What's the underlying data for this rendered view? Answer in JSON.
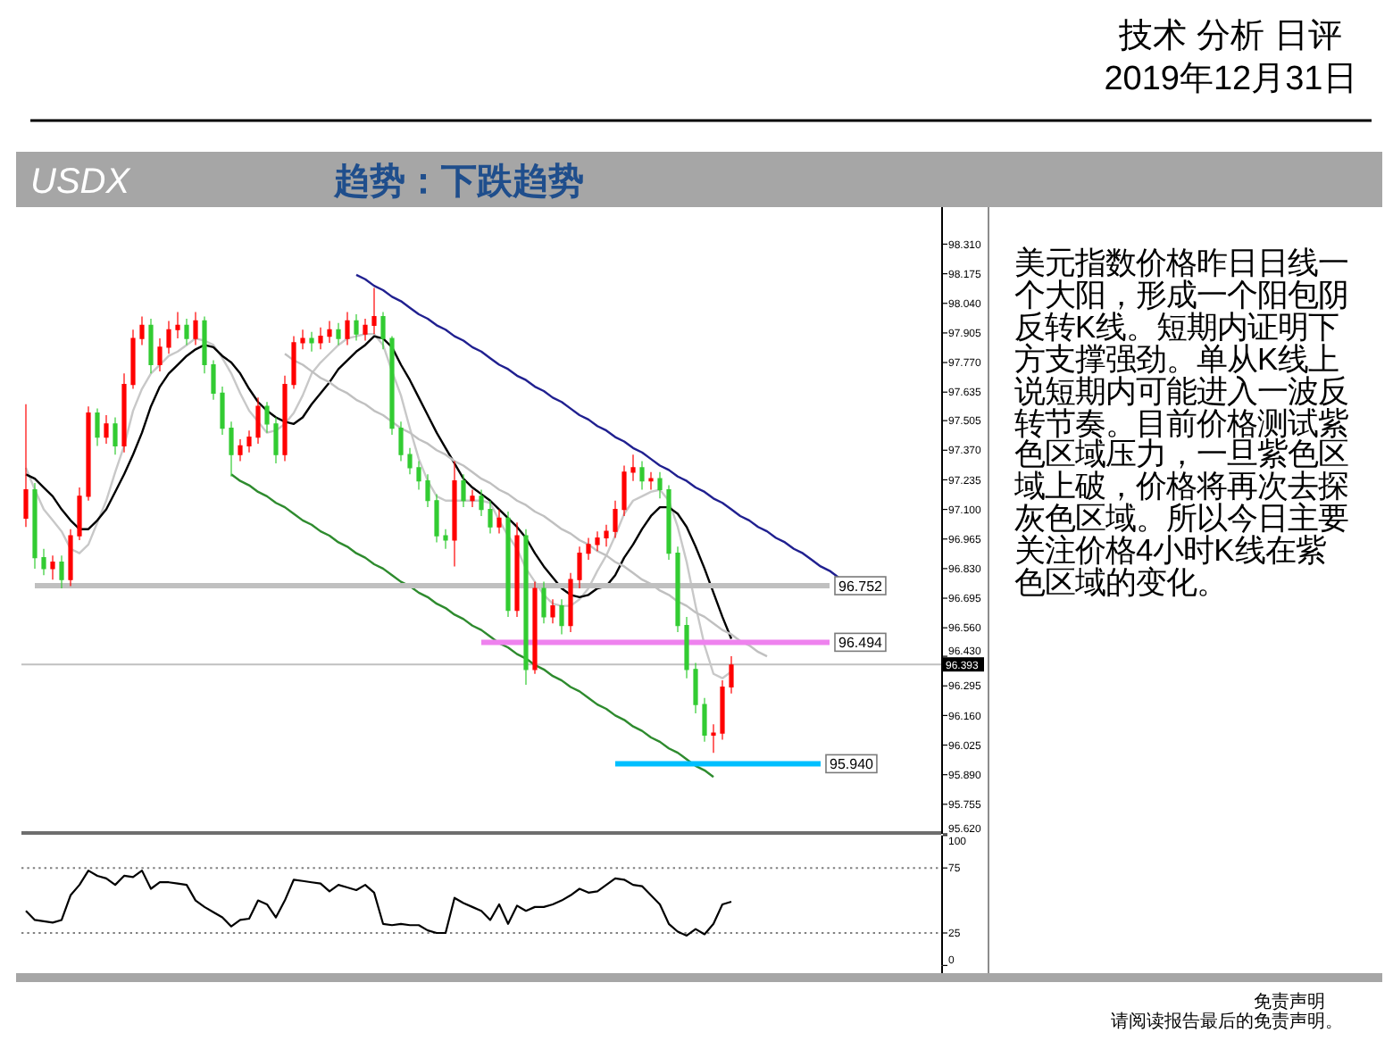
{
  "chart_data": [
    {
      "type": "candlestick",
      "title": "USDX",
      "subtitle": "趋势：下跌趋势",
      "annotations": [
        "技术 分析 日评",
        "2019年12月31日"
      ],
      "categories": [
        null,
        null,
        null,
        null,
        null,
        null,
        null,
        null,
        null,
        null,
        null,
        null,
        null,
        null,
        null,
        null,
        null,
        null,
        null,
        null,
        null,
        null,
        null,
        null,
        null,
        null,
        null,
        null,
        null,
        null,
        null,
        null,
        null,
        null,
        null,
        null,
        null,
        null,
        null,
        null,
        null,
        null,
        null,
        null,
        null,
        null,
        null,
        null,
        null,
        null,
        null,
        null,
        null,
        null,
        null,
        null,
        null,
        null,
        null,
        null,
        null,
        null,
        null,
        null,
        null,
        null,
        null,
        null,
        null,
        null,
        null,
        null,
        null,
        null,
        null,
        null,
        null,
        null,
        null,
        null,
        null,
        null,
        null,
        null,
        null,
        null,
        null,
        null,
        null,
        null,
        null,
        null,
        null,
        null,
        null,
        null,
        null,
        null,
        null,
        null,
        null,
        null,
        null
      ],
      "ohlc": [
        [
          97.06,
          97.58,
          97.02,
          97.19
        ],
        [
          97.19,
          97.22,
          96.83,
          96.88
        ],
        [
          96.88,
          96.92,
          96.8,
          96.83
        ],
        [
          96.83,
          96.89,
          96.78,
          96.86
        ],
        [
          96.86,
          96.89,
          96.74,
          96.78
        ],
        [
          96.78,
          97.01,
          96.75,
          96.98
        ],
        [
          96.98,
          97.2,
          96.96,
          97.16
        ],
        [
          97.16,
          97.57,
          97.14,
          97.54
        ],
        [
          97.54,
          97.56,
          97.39,
          97.43
        ],
        [
          97.43,
          97.53,
          97.4,
          97.49
        ],
        [
          97.49,
          97.52,
          97.35,
          97.39
        ],
        [
          97.39,
          97.72,
          97.36,
          97.67
        ],
        [
          97.67,
          97.92,
          97.65,
          97.88
        ],
        [
          97.88,
          97.98,
          97.85,
          97.94
        ],
        [
          97.94,
          97.97,
          97.72,
          97.76
        ],
        [
          97.76,
          97.88,
          97.73,
          97.84
        ],
        [
          97.84,
          97.96,
          97.81,
          97.92
        ],
        [
          97.92,
          98.0,
          97.88,
          97.94
        ],
        [
          97.94,
          97.97,
          97.85,
          97.88
        ],
        [
          97.88,
          98.0,
          97.85,
          97.96
        ],
        [
          97.96,
          97.98,
          97.72,
          97.76
        ],
        [
          97.76,
          97.78,
          97.6,
          97.63
        ],
        [
          97.63,
          97.66,
          97.44,
          97.47
        ],
        [
          97.47,
          97.5,
          97.25,
          97.35
        ],
        [
          97.35,
          97.42,
          97.32,
          97.39
        ],
        [
          97.39,
          97.46,
          97.36,
          97.43
        ],
        [
          97.43,
          97.61,
          97.4,
          97.57
        ],
        [
          97.57,
          97.59,
          97.45,
          97.49
        ],
        [
          97.49,
          97.52,
          97.31,
          97.35
        ],
        [
          97.35,
          97.71,
          97.32,
          97.67
        ],
        [
          97.67,
          97.89,
          97.65,
          97.86
        ],
        [
          97.86,
          97.92,
          97.83,
          97.88
        ],
        [
          97.88,
          97.91,
          97.82,
          97.86
        ],
        [
          97.86,
          97.93,
          97.83,
          97.89
        ],
        [
          97.89,
          97.96,
          97.86,
          97.92
        ],
        [
          97.92,
          97.95,
          97.85,
          97.88
        ],
        [
          97.88,
          98.0,
          97.85,
          97.96
        ],
        [
          97.96,
          97.99,
          97.87,
          97.9
        ],
        [
          97.9,
          97.97,
          97.87,
          97.94
        ],
        [
          97.94,
          98.11,
          97.9,
          97.98
        ],
        [
          97.98,
          98.0,
          97.83,
          97.88
        ],
        [
          97.88,
          97.89,
          97.44,
          97.47
        ],
        [
          97.47,
          97.5,
          97.32,
          97.35
        ],
        [
          97.35,
          97.38,
          97.26,
          97.29
        ],
        [
          97.29,
          97.32,
          97.19,
          97.23
        ],
        [
          97.23,
          97.26,
          97.11,
          97.14
        ],
        [
          97.14,
          97.17,
          96.95,
          96.98
        ],
        [
          96.98,
          97.01,
          96.92,
          96.96
        ],
        [
          96.96,
          97.32,
          96.84,
          97.23
        ],
        [
          97.23,
          97.26,
          97.11,
          97.14
        ],
        [
          97.14,
          97.19,
          97.11,
          97.16
        ],
        [
          97.16,
          97.19,
          97.07,
          97.1
        ],
        [
          97.1,
          97.14,
          96.99,
          97.02
        ],
        [
          97.02,
          97.1,
          96.99,
          97.06
        ],
        [
          97.06,
          97.09,
          96.61,
          96.64
        ],
        [
          96.64,
          97.04,
          96.61,
          96.98
        ],
        [
          96.98,
          97.01,
          96.3,
          96.37
        ],
        [
          96.37,
          96.77,
          96.35,
          96.74
        ],
        [
          96.74,
          96.77,
          96.58,
          96.61
        ],
        [
          96.61,
          96.69,
          96.58,
          96.66
        ],
        [
          96.66,
          96.69,
          96.53,
          96.57
        ],
        [
          96.57,
          96.81,
          96.54,
          96.78
        ],
        [
          96.78,
          96.93,
          96.74,
          96.9
        ],
        [
          96.9,
          96.97,
          96.87,
          96.94
        ],
        [
          96.94,
          97.0,
          96.91,
          96.97
        ],
        [
          96.97,
          97.03,
          96.93,
          97.0
        ],
        [
          97.0,
          97.14,
          96.97,
          97.1
        ],
        [
          97.1,
          97.3,
          97.07,
          97.27
        ],
        [
          97.27,
          97.35,
          97.23,
          97.29
        ],
        [
          97.29,
          97.32,
          97.19,
          97.23
        ],
        [
          97.23,
          97.27,
          97.19,
          97.24
        ],
        [
          97.24,
          97.27,
          97.15,
          97.19
        ],
        [
          97.19,
          97.21,
          96.87,
          96.9
        ],
        [
          96.9,
          96.93,
          96.54,
          96.57
        ],
        [
          96.57,
          96.61,
          96.33,
          96.37
        ],
        [
          96.37,
          96.4,
          96.17,
          96.21
        ],
        [
          96.21,
          96.24,
          96.04,
          96.07
        ],
        [
          96.07,
          96.12,
          95.99,
          96.08
        ],
        [
          96.08,
          96.32,
          96.05,
          96.29
        ],
        [
          96.29,
          96.43,
          96.26,
          96.39
        ],
        null,
        null,
        null,
        null,
        null,
        null,
        null,
        null,
        null,
        null,
        null,
        null,
        null,
        null,
        null,
        null,
        null,
        null,
        null,
        null,
        null,
        null,
        null
      ],
      "colors": [
        "#ff0000",
        "#33cc33",
        "#33cc33",
        "#ff0000",
        "#33cc33",
        "#ff0000",
        "#ff0000",
        "#ff0000",
        "#33cc33",
        "#ff0000",
        "#33cc33",
        "#ff0000",
        "#ff0000",
        "#ff0000",
        "#33cc33",
        "#ff0000",
        "#ff0000",
        "#ff0000",
        "#33cc33",
        "#ff0000",
        "#33cc33",
        "#33cc33",
        "#33cc33",
        "#33cc33",
        "#ff0000",
        "#ff0000",
        "#ff0000",
        "#33cc33",
        "#33cc33",
        "#ff0000",
        "#ff0000",
        "#ff0000",
        "#33cc33",
        "#ff0000",
        "#ff0000",
        "#33cc33",
        "#ff0000",
        "#33cc33",
        "#ff0000",
        "#ff0000",
        "#33cc33",
        "#33cc33",
        "#33cc33",
        "#33cc33",
        "#33cc33",
        "#33cc33",
        "#33cc33",
        "#33cc33",
        "#ff0000",
        "#33cc33",
        "#ff0000",
        "#33cc33",
        "#33cc33",
        "#ff0000",
        "#33cc33",
        "#ff0000",
        "#33cc33",
        "#ff0000",
        "#33cc33",
        "#ff0000",
        "#33cc33",
        "#ff0000",
        "#ff0000",
        "#ff0000",
        "#ff0000",
        "#ff0000",
        "#ff0000",
        "#ff0000",
        "#ff0000",
        "#33cc33",
        "#ff0000",
        "#33cc33",
        "#33cc33",
        "#33cc33",
        "#33cc33",
        "#33cc33",
        "#33cc33",
        "#ff0000",
        "#ff0000",
        "#ff0000",
        null,
        null,
        null,
        null,
        null,
        null,
        null,
        null,
        null,
        null,
        null,
        null,
        null,
        null,
        null,
        null,
        null,
        null,
        null,
        null,
        null,
        null,
        null
      ],
      "series": [
        {
          "type": "line",
          "color": "#c8c8c8",
          "values": [
            97.29,
            97.19,
            97.1,
            97.05,
            97.0,
            96.92,
            96.9,
            96.94,
            97.04,
            97.14,
            97.27,
            97.39,
            97.55,
            97.65,
            97.72,
            97.76,
            97.8,
            97.82,
            97.85,
            97.88,
            97.87,
            97.85,
            97.79,
            97.72,
            97.63,
            97.55,
            97.5,
            97.45,
            97.46,
            97.49,
            97.54,
            97.62,
            97.72,
            97.77,
            97.81,
            97.85,
            97.88,
            97.89,
            97.9,
            97.9,
            97.85,
            97.73,
            97.62,
            97.47,
            97.33,
            97.23,
            97.16,
            97.14,
            97.14,
            97.14,
            97.14,
            97.14,
            97.13,
            97.05,
            96.98,
            96.92,
            96.83,
            96.77,
            96.71,
            96.67,
            96.66,
            96.66,
            96.69,
            96.74,
            96.82,
            96.89,
            96.98,
            97.08,
            97.14,
            97.16,
            97.18,
            97.19,
            97.14,
            97.02,
            96.86,
            96.66,
            96.48,
            96.35,
            96.33,
            96.36,
            null,
            null,
            null,
            null,
            null,
            null,
            null,
            null,
            null,
            null,
            null,
            null,
            null,
            null,
            null,
            null,
            null,
            null,
            null,
            null,
            null,
            null,
            null
          ]
        },
        {
          "type": "line",
          "color": "#000000",
          "values": [
            97.26,
            97.24,
            97.2,
            97.16,
            97.1,
            97.05,
            97.01,
            97.01,
            97.05,
            97.1,
            97.18,
            97.26,
            97.35,
            97.45,
            97.57,
            97.66,
            97.72,
            97.76,
            97.8,
            97.83,
            97.85,
            97.84,
            97.8,
            97.77,
            97.72,
            97.65,
            97.59,
            97.55,
            97.52,
            97.5,
            97.49,
            97.52,
            97.58,
            97.63,
            97.68,
            97.74,
            97.78,
            97.82,
            97.85,
            97.89,
            97.88,
            97.84,
            97.76,
            97.69,
            97.61,
            97.53,
            97.45,
            97.38,
            97.31,
            97.24,
            97.2,
            97.17,
            97.14,
            97.1,
            97.06,
            97.02,
            96.97,
            96.9,
            96.84,
            96.79,
            96.74,
            96.71,
            96.7,
            96.71,
            96.74,
            96.75,
            96.8,
            96.88,
            96.94,
            97.01,
            97.07,
            97.11,
            97.11,
            97.08,
            97.02,
            96.93,
            96.83,
            96.72,
            96.61,
            96.51,
            null,
            null,
            null,
            null,
            null,
            null,
            null,
            null,
            null,
            null,
            null,
            null,
            null,
            null,
            null,
            null,
            null,
            null,
            null,
            null,
            null,
            null,
            null
          ]
        },
        {
          "type": "line",
          "color": "#c0c0c0",
          "values": [
            null,
            null,
            null,
            null,
            null,
            null,
            null,
            null,
            null,
            null,
            null,
            null,
            null,
            null,
            null,
            null,
            null,
            null,
            null,
            null,
            null,
            null,
            null,
            null,
            null,
            null,
            null,
            null,
            null,
            97.81,
            97.78,
            97.76,
            97.73,
            97.7,
            97.68,
            97.65,
            97.63,
            97.6,
            97.58,
            97.55,
            97.53,
            97.5,
            97.47,
            97.45,
            97.42,
            97.4,
            97.37,
            97.35,
            97.32,
            97.3,
            97.27,
            97.24,
            97.22,
            97.19,
            97.17,
            97.14,
            97.12,
            97.09,
            97.07,
            97.04,
            97.01,
            96.99,
            96.96,
            96.94,
            96.91,
            96.89,
            96.86,
            96.84,
            96.81,
            96.78,
            96.76,
            96.73,
            96.71,
            96.68,
            96.66,
            96.63,
            96.61,
            96.58,
            96.55,
            96.53,
            96.5,
            96.48,
            96.45,
            96.43,
            null,
            null,
            null,
            null,
            null,
            null,
            null,
            null,
            null,
            null,
            null,
            null,
            null,
            null,
            null,
            null,
            null,
            null,
            null
          ]
        },
        {
          "type": "line",
          "color": "#202090",
          "values": [
            null,
            null,
            null,
            null,
            null,
            null,
            null,
            null,
            null,
            null,
            null,
            null,
            null,
            null,
            null,
            null,
            null,
            null,
            null,
            null,
            null,
            null,
            null,
            null,
            null,
            null,
            null,
            null,
            null,
            null,
            null,
            null,
            null,
            null,
            null,
            null,
            null,
            98.17,
            98.15,
            98.12,
            98.1,
            98.07,
            98.05,
            98.02,
            97.99,
            97.97,
            97.94,
            97.92,
            97.89,
            97.87,
            97.84,
            97.82,
            97.79,
            97.76,
            97.74,
            97.71,
            97.69,
            97.66,
            97.64,
            97.61,
            97.59,
            97.56,
            97.53,
            97.51,
            97.48,
            97.46,
            97.43,
            97.41,
            97.38,
            97.36,
            97.33,
            97.3,
            97.28,
            97.25,
            97.23,
            97.2,
            97.18,
            97.15,
            97.13,
            97.1,
            97.07,
            97.05,
            97.02,
            97.0,
            96.97,
            96.95,
            96.92,
            96.9,
            96.87,
            96.84,
            96.82,
            96.79,
            null,
            null,
            null,
            null,
            null,
            null,
            null,
            null,
            null,
            null,
            null
          ]
        },
        {
          "type": "line",
          "color": "#2e8b2e",
          "values": [
            null,
            null,
            null,
            null,
            null,
            null,
            null,
            null,
            null,
            null,
            null,
            null,
            null,
            null,
            null,
            null,
            null,
            null,
            null,
            null,
            null,
            null,
            null,
            97.26,
            97.23,
            97.21,
            97.18,
            97.16,
            97.13,
            97.11,
            97.08,
            97.05,
            97.03,
            97.0,
            96.98,
            96.95,
            96.93,
            96.9,
            96.88,
            96.85,
            96.83,
            96.8,
            96.77,
            96.75,
            96.72,
            96.7,
            96.67,
            96.65,
            96.62,
            96.6,
            96.57,
            96.55,
            96.52,
            96.49,
            96.47,
            96.44,
            96.42,
            96.39,
            96.37,
            96.34,
            96.32,
            96.29,
            96.27,
            96.24,
            96.21,
            96.19,
            96.16,
            96.14,
            96.11,
            96.09,
            96.06,
            96.04,
            96.01,
            95.99,
            95.96,
            95.93,
            95.91,
            95.88,
            null,
            null,
            null,
            null,
            null,
            null,
            null,
            null,
            null,
            null,
            null,
            null,
            null,
            null,
            null,
            null,
            null,
            null,
            null,
            null,
            null,
            null,
            null,
            null,
            null
          ]
        },
        {
          "type": "line",
          "color": "#c0c0c0",
          "values": [
            null,
            96.752,
            96.752,
            96.752,
            96.752,
            96.752,
            96.752,
            96.752,
            96.752,
            96.752,
            96.752,
            96.752,
            96.752,
            96.752,
            96.752,
            96.752,
            96.752,
            96.752,
            96.752,
            96.752,
            96.752,
            96.752,
            96.752,
            96.752,
            96.752,
            96.752,
            96.752,
            96.752,
            96.752,
            96.752,
            96.752,
            96.752,
            96.752,
            96.752,
            96.752,
            96.752,
            96.752,
            96.752,
            96.752,
            96.752,
            96.752,
            96.752,
            96.752,
            96.752,
            96.752,
            96.752,
            96.752,
            96.752,
            96.752,
            96.752,
            96.752,
            96.752,
            96.752,
            96.752,
            96.752,
            96.752,
            96.752,
            96.752,
            96.752,
            96.752,
            96.752,
            96.752,
            96.752,
            96.752,
            96.752,
            96.752,
            96.752,
            96.752,
            96.752,
            96.752,
            96.752,
            96.752,
            96.752,
            96.752,
            96.752,
            96.752,
            96.752,
            96.752,
            96.752,
            96.752,
            96.752,
            96.752,
            96.752,
            96.752,
            96.752,
            96.752,
            96.752,
            96.752,
            96.752,
            96.752,
            96.752,
            null,
            null,
            null,
            null,
            null,
            null,
            null,
            null,
            null,
            null,
            null,
            null
          ],
          "value_labels": [
            null,
            null,
            null,
            null,
            null,
            null,
            null,
            null,
            null,
            null,
            null,
            null,
            null,
            null,
            null,
            null,
            null,
            null,
            null,
            null,
            null,
            null,
            null,
            null,
            null,
            null,
            null,
            null,
            null,
            null,
            null,
            null,
            null,
            null,
            null,
            null,
            null,
            null,
            null,
            null,
            null,
            null,
            null,
            null,
            null,
            null,
            null,
            null,
            null,
            null,
            null,
            null,
            null,
            null,
            null,
            null,
            null,
            null,
            null,
            null,
            null,
            null,
            null,
            null,
            null,
            null,
            null,
            null,
            null,
            null,
            null,
            null,
            null,
            null,
            null,
            null,
            null,
            null,
            null,
            null,
            null,
            null,
            null,
            null,
            null,
            null,
            null,
            null,
            null,
            null,
            "96.752",
            null,
            null,
            null,
            null,
            null,
            null,
            null,
            null,
            null,
            null,
            null,
            null
          ]
        },
        {
          "type": "line",
          "color": "#ee82ee",
          "values": [
            null,
            null,
            null,
            null,
            null,
            null,
            null,
            null,
            null,
            null,
            null,
            null,
            null,
            null,
            null,
            null,
            null,
            null,
            null,
            null,
            null,
            null,
            null,
            null,
            null,
            null,
            null,
            null,
            null,
            null,
            null,
            null,
            null,
            null,
            null,
            null,
            null,
            null,
            null,
            null,
            null,
            null,
            null,
            null,
            null,
            null,
            null,
            null,
            null,
            null,
            null,
            96.494,
            96.494,
            96.494,
            96.494,
            96.494,
            96.494,
            96.494,
            96.494,
            96.494,
            96.494,
            96.494,
            96.494,
            96.494,
            96.494,
            96.494,
            96.494,
            96.494,
            96.494,
            96.494,
            96.494,
            96.494,
            96.494,
            96.494,
            96.494,
            96.494,
            96.494,
            96.494,
            96.494,
            96.494,
            96.494,
            96.494,
            96.494,
            96.494,
            96.494,
            96.494,
            96.494,
            96.494,
            96.494,
            96.494,
            96.494,
            null,
            null,
            null,
            null,
            null,
            null,
            null,
            null,
            null,
            null,
            null,
            null
          ],
          "value_labels": [
            null,
            null,
            null,
            null,
            null,
            null,
            null,
            null,
            null,
            null,
            null,
            null,
            null,
            null,
            null,
            null,
            null,
            null,
            null,
            null,
            null,
            null,
            null,
            null,
            null,
            null,
            null,
            null,
            null,
            null,
            null,
            null,
            null,
            null,
            null,
            null,
            null,
            null,
            null,
            null,
            null,
            null,
            null,
            null,
            null,
            null,
            null,
            null,
            null,
            null,
            null,
            null,
            null,
            null,
            null,
            null,
            null,
            null,
            null,
            null,
            null,
            null,
            null,
            null,
            null,
            null,
            null,
            null,
            null,
            null,
            null,
            null,
            null,
            null,
            null,
            null,
            null,
            null,
            null,
            null,
            null,
            null,
            null,
            null,
            null,
            null,
            null,
            null,
            null,
            null,
            "96.494",
            null,
            null,
            null,
            null,
            null,
            null,
            null,
            null,
            null,
            null,
            null,
            null
          ]
        },
        {
          "type": "line",
          "color": "#00bfff",
          "values": [
            null,
            null,
            null,
            null,
            null,
            null,
            null,
            null,
            null,
            null,
            null,
            null,
            null,
            null,
            null,
            null,
            null,
            null,
            null,
            null,
            null,
            null,
            null,
            null,
            null,
            null,
            null,
            null,
            null,
            null,
            null,
            null,
            null,
            null,
            null,
            null,
            null,
            null,
            null,
            null,
            null,
            null,
            null,
            null,
            null,
            null,
            null,
            null,
            null,
            null,
            null,
            null,
            null,
            null,
            null,
            null,
            null,
            null,
            null,
            null,
            null,
            null,
            null,
            null,
            null,
            null,
            95.94,
            95.94,
            95.94,
            95.94,
            95.94,
            95.94,
            95.94,
            95.94,
            95.94,
            95.94,
            95.94,
            95.94,
            95.94,
            95.94,
            95.94,
            95.94,
            95.94,
            95.94,
            95.94,
            95.94,
            95.94,
            95.94,
            95.94,
            95.94,
            null,
            null,
            null,
            null,
            null,
            null,
            null,
            null,
            null,
            null,
            null,
            null,
            null
          ],
          "value_labels": [
            null,
            null,
            null,
            null,
            null,
            null,
            null,
            null,
            null,
            null,
            null,
            null,
            null,
            null,
            null,
            null,
            null,
            null,
            null,
            null,
            null,
            null,
            null,
            null,
            null,
            null,
            null,
            null,
            null,
            null,
            null,
            null,
            null,
            null,
            null,
            null,
            null,
            null,
            null,
            null,
            null,
            null,
            null,
            null,
            null,
            null,
            null,
            null,
            null,
            null,
            null,
            null,
            null,
            null,
            null,
            null,
            null,
            null,
            null,
            null,
            null,
            null,
            null,
            null,
            null,
            null,
            null,
            null,
            null,
            null,
            null,
            null,
            null,
            null,
            null,
            null,
            null,
            null,
            null,
            null,
            null,
            null,
            null,
            null,
            null,
            null,
            null,
            null,
            null,
            "95.940",
            null,
            null,
            null,
            null,
            null,
            null,
            null,
            null,
            null,
            null,
            null,
            null,
            null
          ]
        }
      ],
      "ylim": [
        95.62,
        98.43
      ],
      "yticks": [
        {
          "value": 98.31,
          "label": "98.310"
        },
        98.175,
        {
          "value": 98.04,
          "label": "98.040"
        },
        97.905,
        {
          "value": 97.77,
          "label": "97.770"
        },
        97.635,
        97.505,
        {
          "value": 97.37,
          "label": "97.370"
        },
        97.235,
        {
          "value": 97.1,
          "label": "97.100"
        },
        96.965,
        {
          "value": 96.83,
          "label": "96.830"
        },
        96.695,
        {
          "value": 96.56,
          "label": "96.560"
        },
        {
          "value": 96.43,
          "label": "96.430"
        },
        96.295,
        {
          "value": 96.16,
          "label": "96.160"
        },
        96.025,
        {
          "value": 95.89,
          "label": "95.890"
        },
        95.755,
        {
          "value": 95.62,
          "label": "95.620"
        }
      ],
      "ref_lines": [
        {
          "axis": "y",
          "value": 96.393,
          "label": "96.393",
          "color": "#c0c0c0"
        }
      ],
      "tick_labels": "y"
    },
    {
      "type": "line",
      "categories": [
        null,
        null,
        null,
        null,
        null,
        null,
        null,
        null,
        null,
        null,
        null,
        null,
        null,
        null,
        null,
        null,
        null,
        null,
        null,
        null,
        null,
        null,
        null,
        null,
        null,
        null,
        null,
        null,
        null,
        null,
        null,
        null,
        null,
        null,
        null,
        null,
        null,
        null,
        null,
        null,
        null,
        null,
        null,
        null,
        null,
        null,
        null,
        null,
        null,
        null,
        null,
        null,
        null,
        null,
        null,
        null,
        null,
        null,
        null,
        null,
        null,
        null,
        null,
        null,
        null,
        null,
        null,
        null,
        null,
        null,
        null,
        null,
        null,
        null,
        null,
        null,
        null,
        null,
        null,
        null,
        null,
        null,
        null,
        null,
        null,
        null,
        null,
        null,
        null,
        null,
        null,
        null,
        null,
        null,
        null,
        null,
        null,
        null,
        null,
        null,
        null,
        null,
        null
      ],
      "values": [
        42,
        35,
        34,
        33,
        35,
        54,
        62,
        73,
        69,
        67,
        62,
        69,
        68,
        73,
        59,
        64,
        64,
        63,
        62,
        50,
        45,
        41,
        37,
        30,
        35,
        36,
        50,
        47,
        37,
        50,
        66,
        65,
        64,
        63,
        57,
        62,
        60,
        58,
        62,
        56,
        32,
        31,
        32,
        31,
        31,
        27,
        25,
        25,
        52,
        48,
        45,
        42,
        35,
        47,
        32,
        46,
        42,
        45,
        45,
        47,
        50,
        54,
        59,
        56,
        57,
        62,
        67,
        66,
        62,
        61,
        54,
        47,
        32,
        26,
        23,
        28,
        24,
        32,
        47,
        49,
        null,
        null,
        null,
        null,
        null,
        null,
        null,
        null,
        null,
        null,
        null,
        null,
        null,
        null,
        null,
        null,
        null,
        null,
        null,
        null,
        null,
        null,
        null
      ],
      "color": "#000000",
      "ylim": [
        0,
        100
      ],
      "yticks": [
        0,
        25,
        75,
        100
      ],
      "ref_lines": [
        {
          "axis": "y",
          "value": 75,
          "line_style": "dotted",
          "color": "#808080"
        },
        {
          "axis": "y",
          "value": 25,
          "line_style": "dotted",
          "color": "#808080"
        }
      ],
      "tick_labels": "y"
    },
    {
      "type": "other",
      "annotations": [
        "美元指数价格昨日日线一个大阳，形成一个阳包阴反转K线。短期内证明下方支撑强劲。单从K线上说短期内可能进入一波反转节奏。目前价格测试紫色区域压力，一旦紫色区域上破，价格将再次去探灰色区域。所以今日主要关注价格4小时K线在紫色区域的变化。",
        "免责声明",
        "请阅读报告最后的免责声明。"
      ]
    }
  ]
}
